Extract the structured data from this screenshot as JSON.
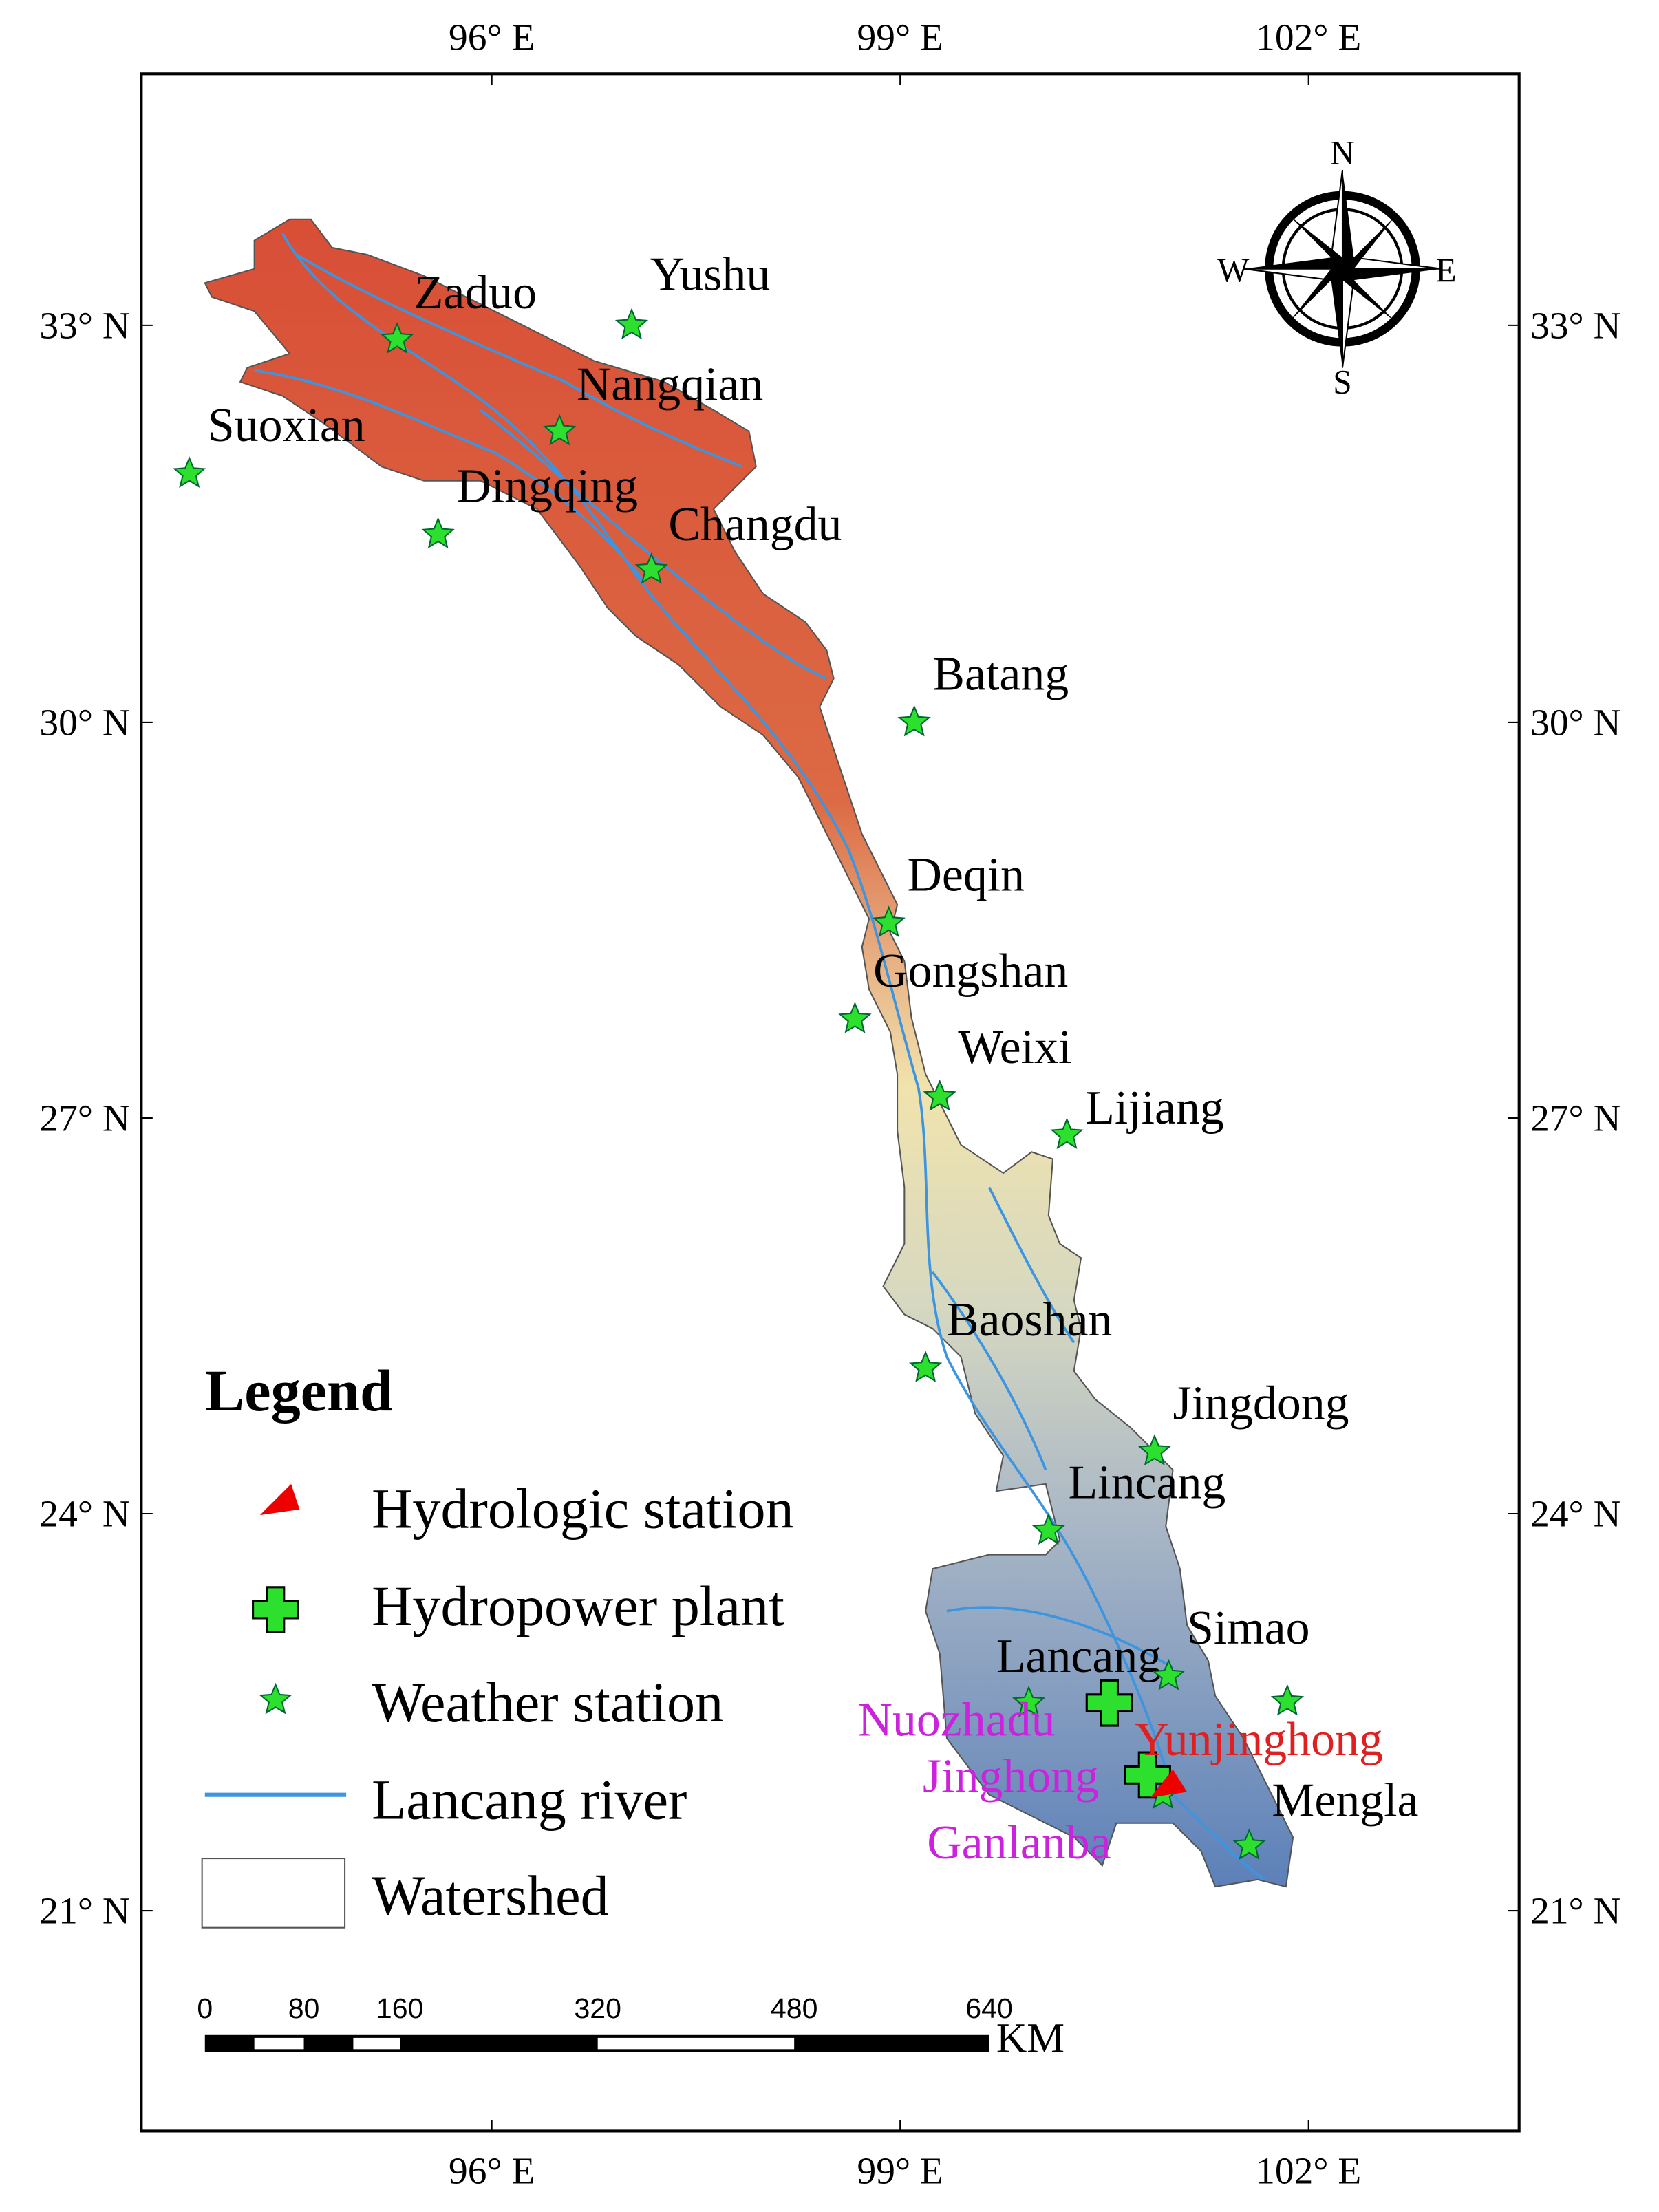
{
  "axes": {
    "top": [
      "96° E",
      "99° E",
      "102° E"
    ],
    "bottom": [
      "96° E",
      "99° E",
      "102° E"
    ],
    "left": [
      "33° N",
      "30° N",
      "27° N",
      "24° N",
      "21° N"
    ],
    "right": [
      "33° N",
      "30° N",
      "27° N",
      "24° N",
      "21° N"
    ]
  },
  "compass": {
    "n": "N",
    "e": "E",
    "s": "S",
    "w": "W"
  },
  "stations": {
    "weather": [
      "Yushu",
      "Zaduo",
      "Nangqian",
      "Suoxian",
      "Dingqing",
      "Changdu",
      "Batang",
      "Deqin",
      "Gongshan",
      "Weixi",
      "Lijiang",
      "Baoshan",
      "Jingdong",
      "Lincang",
      "Lancang",
      "Simao",
      "Mengla"
    ],
    "hydropower": [
      "Nuozhadu",
      "Jinghong",
      "Ganlanba"
    ],
    "hydrologic": [
      "Yunjinghong"
    ]
  },
  "legend": {
    "title": "Legend",
    "items": [
      "Hydrologic station",
      "Hydropower plant",
      "Weather station",
      "Lancang river",
      "Watershed"
    ]
  },
  "scale_bar": {
    "labels": [
      0,
      80,
      160,
      320,
      480,
      640
    ],
    "unit": "KM"
  }
}
